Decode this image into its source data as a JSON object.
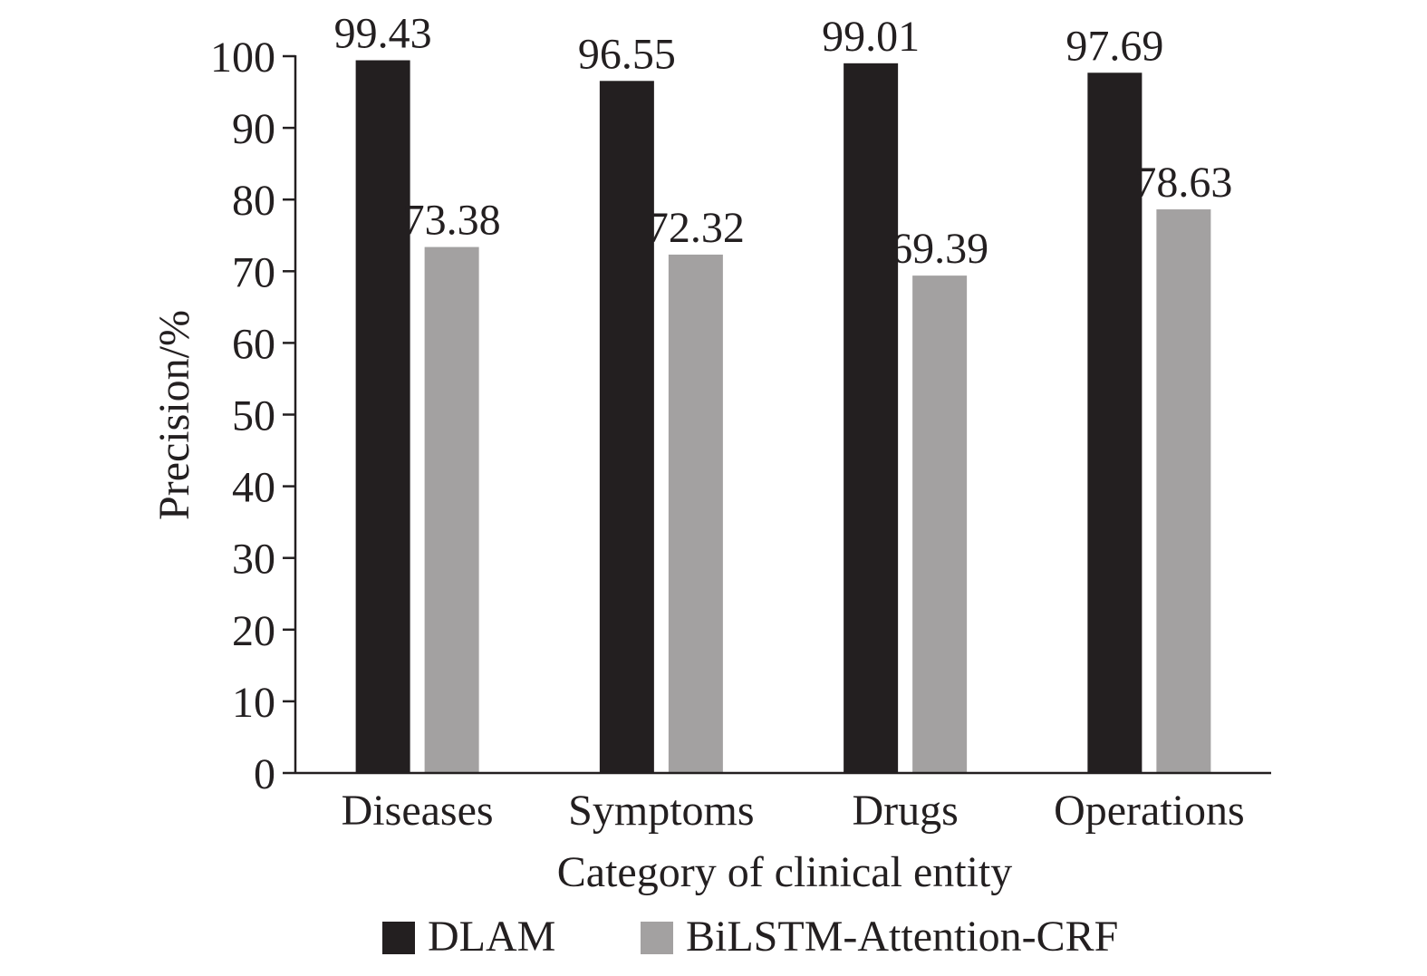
{
  "chart_data": {
    "type": "bar",
    "title": "",
    "xlabel": "Category of clinical entity",
    "ylabel": "Precision/%",
    "ylim": [
      0,
      100
    ],
    "yticks": [
      0,
      10,
      20,
      30,
      40,
      50,
      60,
      70,
      80,
      90,
      100
    ],
    "categories": [
      "Diseases",
      "Symptoms",
      "Drugs",
      "Operations"
    ],
    "series": [
      {
        "name": "DLAM",
        "color": "#231f20",
        "values": [
          99.43,
          96.55,
          99.01,
          97.69
        ],
        "labels": [
          "99.43",
          "96.55",
          "99.01",
          "97.69"
        ]
      },
      {
        "name": "BiLSTM-Attention-CRF",
        "color": "#a3a1a1",
        "values": [
          73.38,
          72.32,
          69.39,
          78.63
        ],
        "labels": [
          "73.38",
          "72.32",
          "69.39",
          "78.63"
        ]
      }
    ],
    "grid": false,
    "legend": "bottom-center"
  }
}
